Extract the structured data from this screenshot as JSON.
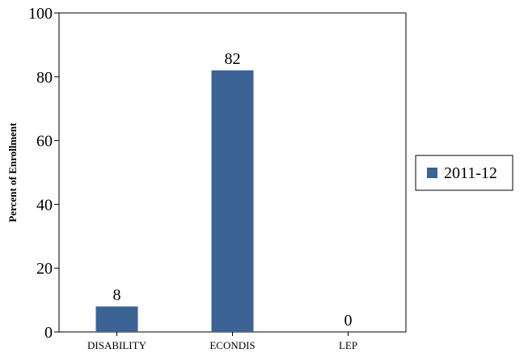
{
  "chart_data": {
    "type": "bar",
    "title": "",
    "xlabel": "",
    "ylabel": "Percent of Enrollment",
    "categories": [
      "DISABILITY",
      "ECONDIS",
      "LEP"
    ],
    "series": [
      {
        "name": "2011-12",
        "values": [
          8,
          82,
          0
        ],
        "color": "#3b6396"
      }
    ],
    "ylim": [
      0,
      100
    ],
    "yticks": [
      0,
      20,
      40,
      60,
      80,
      100
    ],
    "data_labels": [
      "8",
      "82",
      "0"
    ],
    "legend": {
      "position": "right"
    },
    "grid": false
  }
}
